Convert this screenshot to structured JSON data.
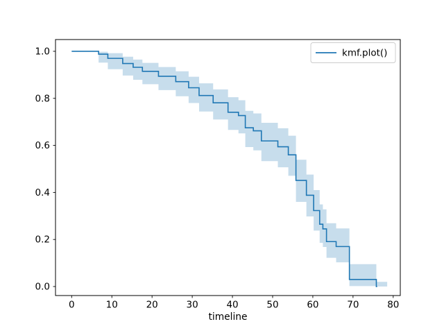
{
  "window": {
    "background": "#ffffff"
  },
  "chart_data": {
    "type": "line",
    "subtype": "kaplan-meier-step-with-confidence-band",
    "title": "",
    "xlabel": "timeline",
    "ylabel": "",
    "xlim": [
      -4.02,
      81.76
    ],
    "ylim": [
      -0.0383,
      1.05
    ],
    "x_ticks": [
      0,
      10,
      20,
      30,
      40,
      50,
      60,
      70,
      80
    ],
    "y_ticks": [
      0.0,
      0.2,
      0.4,
      0.6,
      0.8,
      1.0
    ],
    "grid": false,
    "legend": {
      "position": "upper right",
      "entries": [
        {
          "label": "kmf.plot()",
          "color": "#1f77b4"
        }
      ]
    },
    "colors": {
      "line": "#1f77b4",
      "ci_fill": "#1f77b4",
      "ci_opacity": 0.25,
      "spine": "#000000",
      "tick_text": "#000000",
      "legend_border": "#cccccc",
      "legend_bg": "#ffffff"
    },
    "series": [
      {
        "name": "kmf.plot()",
        "step_times": [
          0,
          6.7,
          9.0,
          12.7,
          15.3,
          17.6,
          21.6,
          25.9,
          29.1,
          31.7,
          35.2,
          38.9,
          41.5,
          43.2,
          45.2,
          47.2,
          51.3,
          53.9,
          55.8,
          58.4,
          60.2,
          61.7,
          62.5,
          63.4,
          65.8,
          69.1,
          75.8
        ],
        "survival": [
          1.0,
          0.988,
          0.97,
          0.948,
          0.932,
          0.915,
          0.894,
          0.871,
          0.845,
          0.812,
          0.781,
          0.741,
          0.727,
          0.675,
          0.662,
          0.619,
          0.594,
          0.56,
          0.451,
          0.388,
          0.323,
          0.265,
          0.245,
          0.191,
          0.17,
          0.03,
          0.0
        ],
        "ci_lower": [
          1.0,
          0.952,
          0.924,
          0.897,
          0.879,
          0.86,
          0.835,
          0.809,
          0.78,
          0.744,
          0.71,
          0.666,
          0.651,
          0.593,
          0.579,
          0.533,
          0.507,
          0.471,
          0.36,
          0.298,
          0.238,
          0.186,
          0.168,
          0.122,
          0.103,
          0.002,
          0.0
        ],
        "ci_upper": [
          1.0,
          0.998,
          0.992,
          0.977,
          0.965,
          0.951,
          0.933,
          0.915,
          0.892,
          0.864,
          0.838,
          0.805,
          0.792,
          0.747,
          0.736,
          0.696,
          0.673,
          0.641,
          0.539,
          0.476,
          0.41,
          0.349,
          0.328,
          0.269,
          0.247,
          0.095,
          0.02
        ],
        "line_end": 76.0,
        "band_end": 78.5,
        "band_start_index": 1
      }
    ]
  }
}
